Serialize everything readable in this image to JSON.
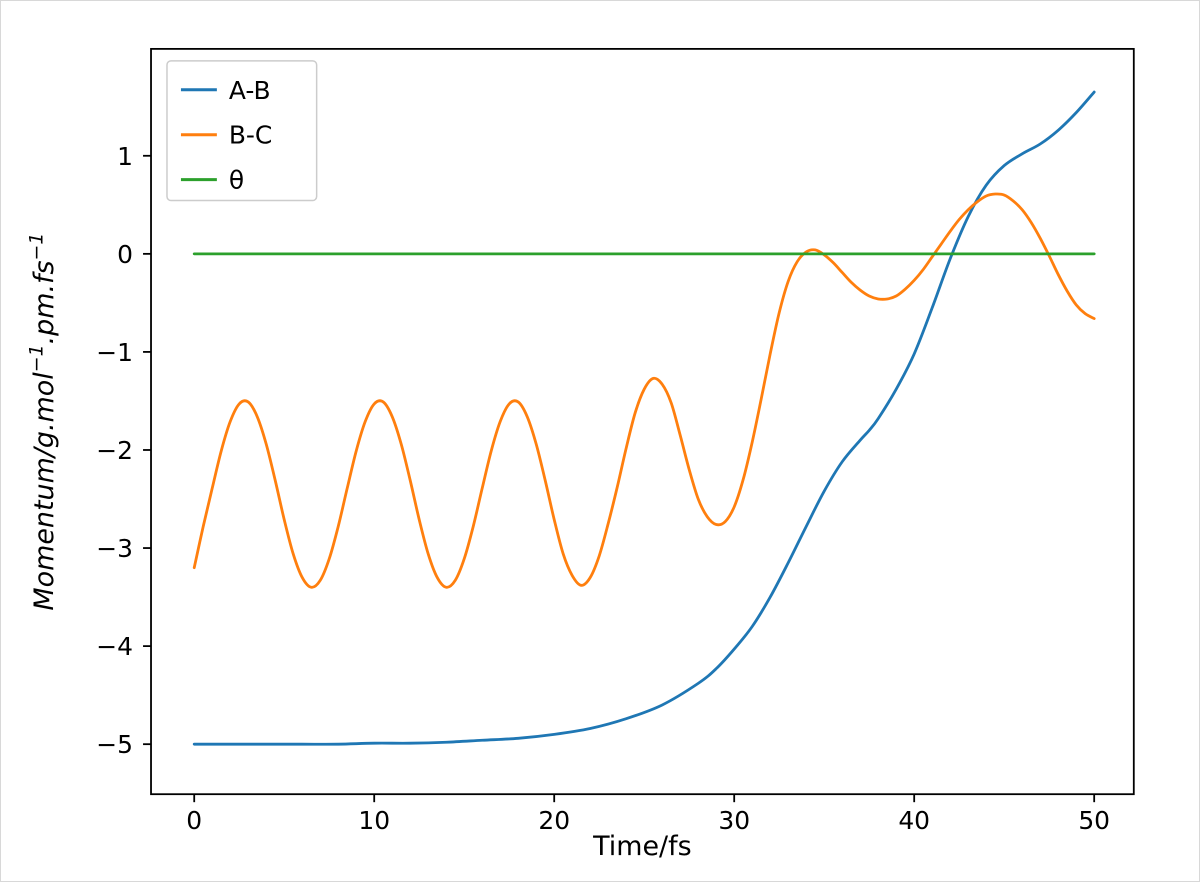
{
  "figure": {
    "background": "#ffffff",
    "frame_color": "#d8d8d8",
    "axis_color": "#000000"
  },
  "chart_data": {
    "type": "line",
    "title": "",
    "xlabel": "Time/fs",
    "ylabel": "Momentum/g.mol−1.pm.fs−1",
    "ylabel_parts": [
      {
        "text": "Momentum/g.mol",
        "sup": false
      },
      {
        "text": "−1",
        "sup": true
      },
      {
        "text": ".pm.fs",
        "sup": false
      },
      {
        "text": "−1",
        "sup": true
      }
    ],
    "xlim": [
      -2.4,
      52.2
    ],
    "ylim": [
      -5.51,
      2.09
    ],
    "grid": false,
    "xticks": [
      0,
      10,
      20,
      30,
      40,
      50
    ],
    "xtick_labels": [
      "0",
      "10",
      "20",
      "30",
      "40",
      "50"
    ],
    "yticks": [
      1,
      0,
      -1,
      -2,
      -3,
      -4,
      -5
    ],
    "ytick_labels": [
      "1",
      "0",
      "−1",
      "−2",
      "−3",
      "−4",
      "−5"
    ],
    "legend": {
      "position": "upper left"
    },
    "series": [
      {
        "name": "A-B",
        "color": "#1f77b4",
        "points": [
          [
            0,
            -5
          ],
          [
            2,
            -5
          ],
          [
            4,
            -5
          ],
          [
            6,
            -5
          ],
          [
            8,
            -5
          ],
          [
            10,
            -4.99
          ],
          [
            12,
            -4.99
          ],
          [
            14,
            -4.98
          ],
          [
            16,
            -4.96
          ],
          [
            18,
            -4.94
          ],
          [
            20,
            -4.9
          ],
          [
            22,
            -4.84
          ],
          [
            24,
            -4.74
          ],
          [
            26,
            -4.6
          ],
          [
            28,
            -4.38
          ],
          [
            29,
            -4.23
          ],
          [
            30,
            -4.03
          ],
          [
            31,
            -3.8
          ],
          [
            32,
            -3.5
          ],
          [
            33,
            -3.15
          ],
          [
            34,
            -2.78
          ],
          [
            35,
            -2.42
          ],
          [
            36,
            -2.12
          ],
          [
            37,
            -1.9
          ],
          [
            37.5,
            -1.8
          ],
          [
            38,
            -1.68
          ],
          [
            39,
            -1.38
          ],
          [
            40,
            -1.02
          ],
          [
            41,
            -0.55
          ],
          [
            42,
            -0.05
          ],
          [
            43,
            0.38
          ],
          [
            44,
            0.7
          ],
          [
            45,
            0.9
          ],
          [
            46,
            1.02
          ],
          [
            47,
            1.12
          ],
          [
            48,
            1.26
          ],
          [
            49,
            1.44
          ],
          [
            50,
            1.65
          ]
        ]
      },
      {
        "name": "B-C",
        "color": "#ff7f0e",
        "points": [
          [
            0,
            -3.2
          ],
          [
            0.5,
            -2.78
          ],
          [
            1,
            -2.39
          ],
          [
            1.5,
            -2.01
          ],
          [
            2,
            -1.71
          ],
          [
            2.5,
            -1.53
          ],
          [
            3,
            -1.51
          ],
          [
            3.5,
            -1.66
          ],
          [
            4,
            -1.94
          ],
          [
            4.5,
            -2.31
          ],
          [
            5,
            -2.71
          ],
          [
            5.5,
            -3.06
          ],
          [
            6,
            -3.3
          ],
          [
            6.5,
            -3.4
          ],
          [
            7,
            -3.33
          ],
          [
            7.5,
            -3.11
          ],
          [
            8,
            -2.78
          ],
          [
            8.5,
            -2.39
          ],
          [
            9,
            -2.01
          ],
          [
            9.5,
            -1.71
          ],
          [
            10,
            -1.53
          ],
          [
            10.5,
            -1.51
          ],
          [
            11,
            -1.66
          ],
          [
            11.5,
            -1.94
          ],
          [
            12,
            -2.31
          ],
          [
            12.5,
            -2.71
          ],
          [
            13,
            -3.06
          ],
          [
            13.5,
            -3.3
          ],
          [
            14,
            -3.4
          ],
          [
            14.5,
            -3.33
          ],
          [
            15,
            -3.11
          ],
          [
            15.5,
            -2.78
          ],
          [
            16,
            -2.39
          ],
          [
            16.5,
            -2.01
          ],
          [
            17,
            -1.71
          ],
          [
            17.5,
            -1.53
          ],
          [
            18,
            -1.51
          ],
          [
            18.5,
            -1.66
          ],
          [
            19,
            -1.94
          ],
          [
            19.5,
            -2.31
          ],
          [
            20,
            -2.71
          ],
          [
            20.5,
            -3.06
          ],
          [
            21,
            -3.28
          ],
          [
            21.5,
            -3.38
          ],
          [
            22,
            -3.3
          ],
          [
            22.5,
            -3.08
          ],
          [
            23,
            -2.75
          ],
          [
            23.5,
            -2.38
          ],
          [
            24,
            -1.98
          ],
          [
            24.5,
            -1.62
          ],
          [
            25,
            -1.38
          ],
          [
            25.5,
            -1.27
          ],
          [
            26,
            -1.33
          ],
          [
            26.5,
            -1.52
          ],
          [
            27,
            -1.85
          ],
          [
            27.5,
            -2.2
          ],
          [
            28,
            -2.5
          ],
          [
            28.5,
            -2.68
          ],
          [
            29,
            -2.76
          ],
          [
            29.5,
            -2.73
          ],
          [
            30,
            -2.58
          ],
          [
            30.5,
            -2.3
          ],
          [
            31,
            -1.92
          ],
          [
            31.5,
            -1.48
          ],
          [
            32,
            -1.02
          ],
          [
            32.5,
            -0.6
          ],
          [
            33,
            -0.28
          ],
          [
            33.5,
            -0.08
          ],
          [
            34,
            0.02
          ],
          [
            34.5,
            0.04
          ],
          [
            35,
            -0.01
          ],
          [
            35.5,
            -0.09
          ],
          [
            36,
            -0.19
          ],
          [
            36.5,
            -0.29
          ],
          [
            37,
            -0.37
          ],
          [
            37.5,
            -0.43
          ],
          [
            38,
            -0.46
          ],
          [
            38.5,
            -0.46
          ],
          [
            39,
            -0.43
          ],
          [
            39.5,
            -0.36
          ],
          [
            40,
            -0.27
          ],
          [
            40.5,
            -0.16
          ],
          [
            41,
            -0.03
          ],
          [
            41.5,
            0.1
          ],
          [
            42,
            0.23
          ],
          [
            42.5,
            0.35
          ],
          [
            43,
            0.45
          ],
          [
            43.5,
            0.53
          ],
          [
            44,
            0.59
          ],
          [
            44.5,
            0.61
          ],
          [
            45,
            0.6
          ],
          [
            45.5,
            0.54
          ],
          [
            46,
            0.45
          ],
          [
            46.5,
            0.32
          ],
          [
            47,
            0.16
          ],
          [
            47.5,
            -0.02
          ],
          [
            48,
            -0.21
          ],
          [
            48.5,
            -0.38
          ],
          [
            49,
            -0.52
          ],
          [
            49.5,
            -0.61
          ],
          [
            50,
            -0.66
          ]
        ]
      },
      {
        "name": "θ",
        "color": "#2ca02c",
        "points": [
          [
            0,
            0
          ],
          [
            50,
            0
          ]
        ]
      }
    ]
  }
}
